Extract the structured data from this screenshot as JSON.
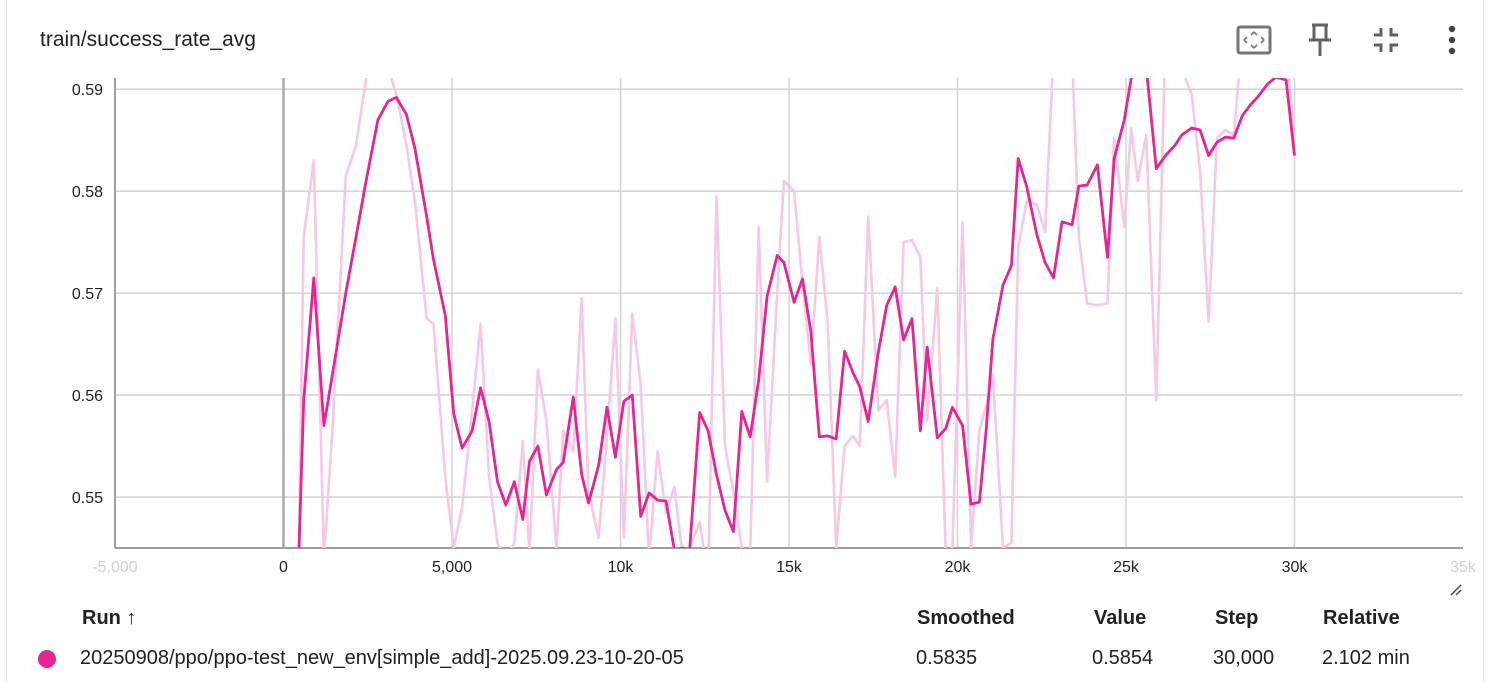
{
  "card": {
    "title": "train/success_rate_avg"
  },
  "toolbar": {
    "buttons": [
      {
        "name": "fit-domain-icon"
      },
      {
        "name": "pin-icon"
      },
      {
        "name": "collapse-icon"
      },
      {
        "name": "more-vert-icon"
      }
    ]
  },
  "colors": {
    "smoothed": "#e52592",
    "raw": "#f6c8e3",
    "grid": "#d5d5d5",
    "axis": "#9e9e9e"
  },
  "chart_data": {
    "type": "line",
    "title": "train/success_rate_avg",
    "xlabel": "",
    "ylabel": "",
    "xlim": [
      -5000,
      35000
    ],
    "ylim": [
      0.545,
      0.5911
    ],
    "x_ticks": [
      "-5,000",
      "0",
      "5,000",
      "10k",
      "15k",
      "20k",
      "25k",
      "30k",
      "35k"
    ],
    "x_tick_values": [
      -5000,
      0,
      5000,
      10000,
      15000,
      20000,
      25000,
      30000,
      35000
    ],
    "y_ticks": [
      "0.55",
      "0.56",
      "0.57",
      "0.58",
      "0.59"
    ],
    "y_tick_values": [
      0.55,
      0.56,
      0.57,
      0.58,
      0.59
    ],
    "grid": true,
    "series": [
      {
        "name": "20250908/ppo/ppo-test_new_env[simple_add]-2025.09.23-10-20-05",
        "kind": "raw",
        "x": [
          450,
          600,
          900,
          1200,
          1450,
          1850,
          2150,
          2450,
          2800,
          3100,
          3350,
          3650,
          3900,
          4250,
          4450,
          4800,
          5050,
          5300,
          5600,
          5850,
          6100,
          6350,
          6600,
          6850,
          7100,
          7300,
          7550,
          7800,
          8100,
          8300,
          8600,
          8850,
          9050,
          9350,
          9600,
          9850,
          10100,
          10350,
          10600,
          10850,
          11100,
          11350,
          11600,
          11850,
          12050,
          12350,
          12600,
          12850,
          13100,
          13350,
          13600,
          13850,
          14100,
          14350,
          14650,
          14850,
          15150,
          15400,
          15650,
          15900,
          16150,
          16400,
          16650,
          16900,
          17100,
          17350,
          17650,
          17900,
          18150,
          18400,
          18650,
          18900,
          19100,
          19400,
          19650,
          19850,
          20150,
          20400,
          20650,
          20850,
          21050,
          21350,
          21600,
          21800,
          22050,
          22350,
          22600,
          22850,
          23100,
          23400,
          23600,
          23850,
          24150,
          24450,
          24650,
          24950,
          25150,
          25350,
          25600,
          25900,
          26150,
          26450,
          26650,
          26950,
          27200,
          27450,
          27700,
          27950,
          28200,
          28450,
          28700,
          28900,
          29200,
          29450,
          29750,
          30000
        ],
        "y": [
          0.544,
          0.5755,
          0.583,
          0.544,
          0.5565,
          0.5815,
          0.5845,
          0.591,
          0.593,
          0.592,
          0.5895,
          0.5845,
          0.579,
          0.5675,
          0.567,
          0.552,
          0.545,
          0.549,
          0.5585,
          0.567,
          0.552,
          0.5455,
          0.544,
          0.5455,
          0.5555,
          0.5445,
          0.5625,
          0.5575,
          0.545,
          0.5565,
          0.5545,
          0.5695,
          0.5505,
          0.546,
          0.556,
          0.5675,
          0.546,
          0.568,
          0.561,
          0.544,
          0.5545,
          0.5485,
          0.551,
          0.544,
          0.545,
          0.5475,
          0.542,
          0.5795,
          0.555,
          0.5505,
          0.545,
          0.5445,
          0.5765,
          0.5515,
          0.57,
          0.581,
          0.58,
          0.571,
          0.563,
          0.5755,
          0.567,
          0.545,
          0.555,
          0.556,
          0.555,
          0.5775,
          0.5585,
          0.5595,
          0.552,
          0.575,
          0.5752,
          0.5735,
          0.5575,
          0.5705,
          0.5445,
          0.545,
          0.577,
          0.545,
          0.5565,
          0.559,
          0.562,
          0.545,
          0.5455,
          0.5745,
          0.579,
          0.5787,
          0.576,
          0.5935,
          0.594,
          0.5935,
          0.5755,
          0.569,
          0.5688,
          0.569,
          0.5852,
          0.5765,
          0.5862,
          0.581,
          0.5855,
          0.5595,
          0.593,
          0.5945,
          0.592,
          0.5895,
          0.582,
          0.5672,
          0.5852,
          0.586,
          0.5855,
          0.595,
          0.5935,
          0.594,
          0.5955,
          0.595,
          0.594,
          0.5854
        ]
      },
      {
        "name": "20250908/ppo/ppo-test_new_env[simple_add]-2025.09.23-10-20-05",
        "kind": "smoothed",
        "x": [
          450,
          600,
          900,
          1200,
          1450,
          1850,
          2150,
          2450,
          2800,
          3100,
          3350,
          3650,
          3900,
          4250,
          4450,
          4800,
          5050,
          5300,
          5600,
          5850,
          6100,
          6350,
          6600,
          6850,
          7100,
          7300,
          7550,
          7800,
          8100,
          8300,
          8600,
          8850,
          9050,
          9350,
          9600,
          9850,
          10100,
          10350,
          10600,
          10850,
          11100,
          11350,
          11600,
          11850,
          12050,
          12350,
          12600,
          12850,
          13100,
          13350,
          13600,
          13850,
          14100,
          14350,
          14650,
          14850,
          15150,
          15400,
          15650,
          15900,
          16150,
          16400,
          16650,
          16900,
          17100,
          17350,
          17650,
          17900,
          18150,
          18400,
          18650,
          18900,
          19100,
          19400,
          19650,
          19850,
          20150,
          20400,
          20650,
          20850,
          21050,
          21350,
          21600,
          21800,
          22050,
          22350,
          22600,
          22850,
          23100,
          23400,
          23600,
          23850,
          24150,
          24450,
          24650,
          24950,
          25150,
          25350,
          25600,
          25900,
          26150,
          26450,
          26650,
          26950,
          27200,
          27450,
          27700,
          27950,
          28200,
          28450,
          28700,
          28900,
          29200,
          29450,
          29750,
          30000
        ],
        "y": [
          0.544,
          0.5595,
          0.5715,
          0.557,
          0.562,
          0.57,
          0.5755,
          0.581,
          0.587,
          0.5888,
          0.5892,
          0.5875,
          0.5842,
          0.5775,
          0.5733,
          0.5678,
          0.5582,
          0.5548,
          0.5565,
          0.5607,
          0.5574,
          0.5515,
          0.5492,
          0.5515,
          0.5478,
          0.5535,
          0.555,
          0.5502,
          0.5527,
          0.5534,
          0.5598,
          0.5522,
          0.5494,
          0.5531,
          0.5588,
          0.5539,
          0.5594,
          0.56,
          0.5481,
          0.5504,
          0.5497,
          0.5496,
          0.5448,
          0.545,
          0.5448,
          0.5583,
          0.5565,
          0.5522,
          0.5487,
          0.5466,
          0.5584,
          0.5559,
          0.5615,
          0.5697,
          0.5737,
          0.573,
          0.5691,
          0.5714,
          0.5662,
          0.5559,
          0.556,
          0.5557,
          0.5643,
          0.5622,
          0.5608,
          0.5574,
          0.5642,
          0.5688,
          0.5706,
          0.5654,
          0.5675,
          0.5565,
          0.5647,
          0.5558,
          0.5567,
          0.5588,
          0.557,
          0.5493,
          0.5495,
          0.5565,
          0.5655,
          0.5708,
          0.5727,
          0.5832,
          0.5805,
          0.5758,
          0.573,
          0.5715,
          0.577,
          0.5767,
          0.5805,
          0.5806,
          0.5826,
          0.5735,
          0.5832,
          0.587,
          0.591,
          0.5935,
          0.5922,
          0.5822,
          0.5834,
          0.5845,
          0.5855,
          0.5862,
          0.586,
          0.5835,
          0.5848,
          0.5853,
          0.5852,
          0.5874,
          0.5885,
          0.5892,
          0.5905,
          0.5912,
          0.5909,
          0.5835
        ]
      }
    ]
  },
  "table": {
    "headers": {
      "run": "Run ↑",
      "smoothed": "Smoothed",
      "value": "Value",
      "step": "Step",
      "relative": "Relative"
    },
    "rows": [
      {
        "color": "#e52592",
        "run": "20250908/ppo/ppo-test_new_env[simple_add]-2025.09.23-10-20-05",
        "smoothed": "0.5835",
        "value": "0.5854",
        "step": "30,000",
        "relative": "2.102 min"
      }
    ]
  }
}
